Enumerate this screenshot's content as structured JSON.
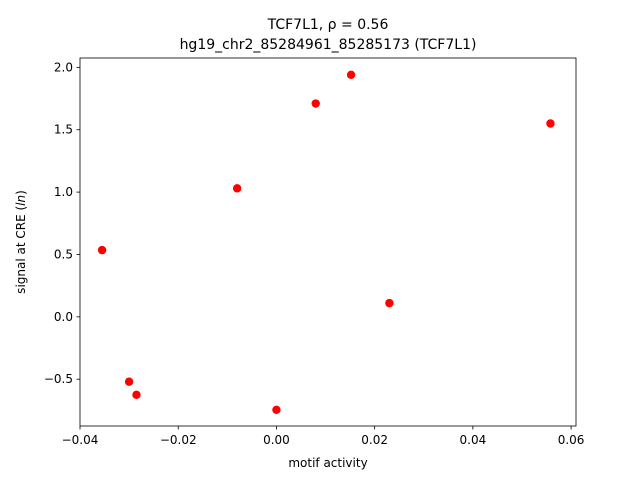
{
  "chart_data": {
    "type": "scatter",
    "title_line1": "TCF7L1, ρ = 0.56",
    "title_line2": "hg19_chr2_85284961_85285173 (TCF7L1)",
    "xlabel": "motif activity",
    "ylabel_prefix": "signal at CRE (",
    "ylabel_italic": "ln",
    "ylabel_suffix": ")",
    "xlim": [
      -0.04,
      0.061
    ],
    "ylim": [
      -0.875,
      2.075
    ],
    "xticks": [
      -0.04,
      -0.02,
      0.0,
      0.02,
      0.04,
      0.06
    ],
    "xtick_labels": [
      "−0.04",
      "−0.02",
      "0.00",
      "0.02",
      "0.04",
      "0.06"
    ],
    "yticks": [
      -0.5,
      0.0,
      0.5,
      1.0,
      1.5,
      2.0
    ],
    "ytick_labels": [
      "−0.5",
      "0.0",
      "0.5",
      "1.0",
      "1.5",
      "2.0"
    ],
    "grid": false,
    "marker_color": "#ff0000",
    "points": [
      {
        "x": -0.0355,
        "y": 0.535
      },
      {
        "x": -0.03,
        "y": -0.52
      },
      {
        "x": -0.0285,
        "y": -0.625
      },
      {
        "x": -0.008,
        "y": 1.03
      },
      {
        "x": 0.0,
        "y": -0.745
      },
      {
        "x": 0.008,
        "y": 1.71
      },
      {
        "x": 0.0152,
        "y": 1.94
      },
      {
        "x": 0.023,
        "y": 0.11
      },
      {
        "x": 0.0558,
        "y": 1.55
      }
    ]
  }
}
